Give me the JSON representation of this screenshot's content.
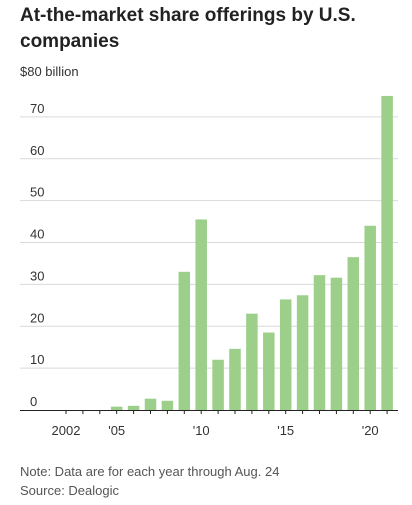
{
  "chart_data": {
    "type": "bar",
    "title": "At-the-market share offerings by U.S. companies",
    "ylabel": "$80 billion",
    "x": [
      2002,
      2003,
      2004,
      2005,
      2006,
      2007,
      2008,
      2009,
      2010,
      2011,
      2012,
      2013,
      2014,
      2015,
      2016,
      2017,
      2018,
      2019,
      2020,
      2021
    ],
    "values": [
      0,
      0,
      0,
      0.8,
      1.0,
      2.7,
      2.2,
      33,
      45.5,
      12,
      14.6,
      23,
      18.5,
      26.4,
      27.4,
      32.2,
      31.6,
      36.5,
      44,
      75
    ],
    "ylim": [
      0,
      80
    ],
    "yticks": [
      "0",
      "10",
      "20",
      "30",
      "40",
      "50",
      "60",
      "70"
    ],
    "xtick_labels": [
      {
        "x": 2002,
        "label": "2002"
      },
      {
        "x": 2005,
        "label": "'05"
      },
      {
        "x": 2010,
        "label": "'10"
      },
      {
        "x": 2015,
        "label": "'15"
      },
      {
        "x": 2020,
        "label": "'20"
      }
    ],
    "grid": true,
    "bar_color": "#9ccf8a",
    "gridline_color": "#d9d9d9"
  },
  "footer": {
    "note": "Note: Data are for each year through Aug. 24",
    "source": "Source: Dealogic"
  }
}
